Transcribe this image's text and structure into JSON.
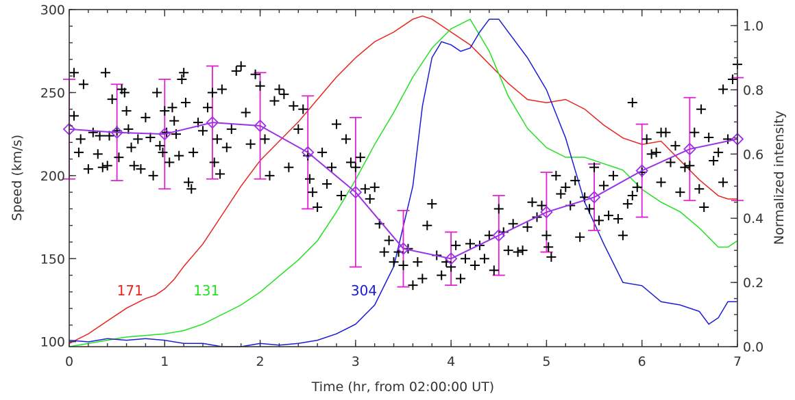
{
  "chart_data": {
    "type": "scatter",
    "xlabel": "Time (hr, from 02:00:00 UT)",
    "ylabel": "Speed (km/s)",
    "y2label": "Normalized intensity",
    "xlim": [
      0,
      7
    ],
    "ylim": [
      97,
      300
    ],
    "y2lim": [
      0,
      1.05
    ],
    "x_ticks": [
      0,
      1,
      2,
      3,
      4,
      5,
      6,
      7
    ],
    "y_ticks": [
      100,
      150,
      200,
      250,
      300
    ],
    "y2_ticks": [
      "0.0",
      "0.2",
      "0.4",
      "0.6",
      "0.8",
      "1.0"
    ],
    "y2_tick_values": [
      0,
      0.2,
      0.4,
      0.6,
      0.8,
      1.0
    ],
    "grid": false,
    "colors": {
      "points": "#000000",
      "mean": "#9a30e8",
      "errorbars": "#e020d0",
      "ch171": "#e8241c",
      "ch131": "#22e022",
      "ch304": "#1a1ad8",
      "axes": "#333333"
    },
    "speed_points": [
      [
        0.05,
        262
      ],
      [
        0.05,
        236
      ],
      [
        0.1,
        214
      ],
      [
        0.12,
        222
      ],
      [
        0.15,
        255
      ],
      [
        0.2,
        204
      ],
      [
        0.25,
        226
      ],
      [
        0.3,
        213
      ],
      [
        0.32,
        224
      ],
      [
        0.35,
        205
      ],
      [
        0.38,
        262
      ],
      [
        0.4,
        206
      ],
      [
        0.42,
        224
      ],
      [
        0.45,
        246
      ],
      [
        0.5,
        227
      ],
      [
        0.52,
        211
      ],
      [
        0.55,
        252
      ],
      [
        0.58,
        250
      ],
      [
        0.6,
        239
      ],
      [
        0.62,
        228
      ],
      [
        0.65,
        217
      ],
      [
        0.68,
        206
      ],
      [
        0.72,
        222
      ],
      [
        0.75,
        204
      ],
      [
        0.8,
        235
      ],
      [
        0.85,
        223
      ],
      [
        0.88,
        200
      ],
      [
        0.92,
        250
      ],
      [
        0.95,
        218
      ],
      [
        0.98,
        214
      ],
      [
        1.0,
        239
      ],
      [
        1.02,
        226
      ],
      [
        1.05,
        208
      ],
      [
        1.08,
        241
      ],
      [
        1.1,
        233
      ],
      [
        1.12,
        225
      ],
      [
        1.15,
        212
      ],
      [
        1.18,
        258
      ],
      [
        1.2,
        262
      ],
      [
        1.22,
        244
      ],
      [
        1.25,
        196
      ],
      [
        1.28,
        192
      ],
      [
        1.3,
        214
      ],
      [
        1.35,
        232
      ],
      [
        1.4,
        227
      ],
      [
        1.45,
        241
      ],
      [
        1.5,
        250
      ],
      [
        1.52,
        208
      ],
      [
        1.55,
        222
      ],
      [
        1.58,
        201
      ],
      [
        1.6,
        252
      ],
      [
        1.65,
        217
      ],
      [
        1.7,
        228
      ],
      [
        1.75,
        263
      ],
      [
        1.8,
        266
      ],
      [
        1.85,
        238
      ],
      [
        1.9,
        219
      ],
      [
        1.95,
        261
      ],
      [
        2.0,
        254
      ],
      [
        2.05,
        222
      ],
      [
        2.1,
        200
      ],
      [
        2.15,
        245
      ],
      [
        2.2,
        252
      ],
      [
        2.25,
        249
      ],
      [
        2.3,
        205
      ],
      [
        2.35,
        242
      ],
      [
        2.4,
        228
      ],
      [
        2.45,
        240
      ],
      [
        2.5,
        212
      ],
      [
        2.52,
        198
      ],
      [
        2.55,
        190
      ],
      [
        2.6,
        181
      ],
      [
        2.65,
        214
      ],
      [
        2.7,
        195
      ],
      [
        2.75,
        205
      ],
      [
        2.8,
        231
      ],
      [
        2.85,
        188
      ],
      [
        2.9,
        222
      ],
      [
        2.95,
        208
      ],
      [
        3.0,
        205
      ],
      [
        3.05,
        211
      ],
      [
        3.1,
        192
      ],
      [
        3.15,
        186
      ],
      [
        3.2,
        193
      ],
      [
        3.25,
        171
      ],
      [
        3.3,
        154
      ],
      [
        3.35,
        161
      ],
      [
        3.4,
        148
      ],
      [
        3.45,
        154
      ],
      [
        3.5,
        146
      ],
      [
        3.55,
        156
      ],
      [
        3.6,
        134
      ],
      [
        3.65,
        148
      ],
      [
        3.7,
        138
      ],
      [
        3.75,
        170
      ],
      [
        3.8,
        183
      ],
      [
        3.85,
        152
      ],
      [
        3.9,
        140
      ],
      [
        3.95,
        148
      ],
      [
        4.0,
        145
      ],
      [
        4.05,
        158
      ],
      [
        4.1,
        138
      ],
      [
        4.15,
        150
      ],
      [
        4.2,
        159
      ],
      [
        4.25,
        146
      ],
      [
        4.3,
        158
      ],
      [
        4.35,
        150
      ],
      [
        4.4,
        164
      ],
      [
        4.45,
        143
      ],
      [
        4.5,
        180
      ],
      [
        4.55,
        166
      ],
      [
        4.6,
        155
      ],
      [
        4.65,
        171
      ],
      [
        4.7,
        154
      ],
      [
        4.75,
        155
      ],
      [
        4.8,
        169
      ],
      [
        4.85,
        184
      ],
      [
        4.9,
        175
      ],
      [
        4.95,
        182
      ],
      [
        5.0,
        164
      ],
      [
        5.02,
        157
      ],
      [
        5.05,
        151
      ],
      [
        5.1,
        200
      ],
      [
        5.15,
        189
      ],
      [
        5.2,
        193
      ],
      [
        5.25,
        182
      ],
      [
        5.3,
        197
      ],
      [
        5.35,
        163
      ],
      [
        5.4,
        187
      ],
      [
        5.45,
        180
      ],
      [
        5.5,
        205
      ],
      [
        5.55,
        173
      ],
      [
        5.6,
        194
      ],
      [
        5.65,
        176
      ],
      [
        5.7,
        200
      ],
      [
        5.75,
        174
      ],
      [
        5.8,
        164
      ],
      [
        5.85,
        183
      ],
      [
        5.9,
        188
      ],
      [
        5.95,
        193
      ],
      [
        6.0,
        202
      ],
      [
        6.05,
        222
      ],
      [
        6.1,
        213
      ],
      [
        6.15,
        214
      ],
      [
        6.2,
        196
      ],
      [
        6.25,
        226
      ],
      [
        6.3,
        208
      ],
      [
        6.35,
        218
      ],
      [
        6.4,
        190
      ],
      [
        6.45,
        205
      ],
      [
        6.5,
        206
      ],
      [
        6.55,
        226
      ],
      [
        6.6,
        192
      ],
      [
        6.65,
        181
      ],
      [
        6.7,
        223
      ],
      [
        6.75,
        209
      ],
      [
        6.8,
        214
      ],
      [
        6.85,
        196
      ],
      [
        6.9,
        222
      ],
      [
        6.95,
        258
      ],
      [
        7.0,
        267
      ],
      [
        6.85,
        252
      ],
      [
        6.62,
        240
      ],
      [
        6.2,
        226
      ],
      [
        5.9,
        244
      ]
    ],
    "mean_speed": [
      {
        "x": 0.0,
        "y": 228,
        "err": 30
      },
      {
        "x": 0.5,
        "y": 226,
        "err": 29
      },
      {
        "x": 1.0,
        "y": 225,
        "err": 33
      },
      {
        "x": 1.5,
        "y": 232,
        "err": 34
      },
      {
        "x": 2.0,
        "y": 230,
        "err": 32
      },
      {
        "x": 2.5,
        "y": 214,
        "err": 34
      },
      {
        "x": 3.0,
        "y": 190,
        "err": 45
      },
      {
        "x": 3.5,
        "y": 156,
        "err": 23
      },
      {
        "x": 4.0,
        "y": 150,
        "err": 16
      },
      {
        "x": 4.5,
        "y": 164,
        "err": 24
      },
      {
        "x": 5.0,
        "y": 178,
        "err": 24
      },
      {
        "x": 5.5,
        "y": 187,
        "err": 20
      },
      {
        "x": 6.0,
        "y": 203,
        "err": 28
      },
      {
        "x": 6.5,
        "y": 216,
        "err": 31
      },
      {
        "x": 7.0,
        "y": 222,
        "err": 37
      }
    ],
    "intensity_curves": [
      {
        "name": "171",
        "points": [
          [
            0,
            0.01
          ],
          [
            0.2,
            0.04
          ],
          [
            0.4,
            0.08
          ],
          [
            0.6,
            0.12
          ],
          [
            0.8,
            0.15
          ],
          [
            0.9,
            0.16
          ],
          [
            1.0,
            0.18
          ],
          [
            1.1,
            0.21
          ],
          [
            1.2,
            0.25
          ],
          [
            1.4,
            0.32
          ],
          [
            1.6,
            0.41
          ],
          [
            1.8,
            0.5
          ],
          [
            2.0,
            0.58
          ],
          [
            2.2,
            0.64
          ],
          [
            2.4,
            0.7
          ],
          [
            2.6,
            0.77
          ],
          [
            2.8,
            0.84
          ],
          [
            3.0,
            0.9
          ],
          [
            3.2,
            0.95
          ],
          [
            3.4,
            0.98
          ],
          [
            3.6,
            1.02
          ],
          [
            3.7,
            1.03
          ],
          [
            3.8,
            1.02
          ],
          [
            4.0,
            0.98
          ],
          [
            4.2,
            0.94
          ],
          [
            4.4,
            0.88
          ],
          [
            4.6,
            0.82
          ],
          [
            4.8,
            0.77
          ],
          [
            5.0,
            0.76
          ],
          [
            5.2,
            0.77
          ],
          [
            5.4,
            0.74
          ],
          [
            5.6,
            0.69
          ],
          [
            5.8,
            0.65
          ],
          [
            6.0,
            0.63
          ],
          [
            6.2,
            0.64
          ],
          [
            6.4,
            0.58
          ],
          [
            6.6,
            0.52
          ],
          [
            6.8,
            0.47
          ],
          [
            6.9,
            0.46
          ],
          [
            7.0,
            0.46
          ]
        ]
      },
      {
        "name": "131",
        "points": [
          [
            0,
            0.0
          ],
          [
            0.2,
            0.01
          ],
          [
            0.4,
            0.02
          ],
          [
            0.6,
            0.03
          ],
          [
            0.8,
            0.035
          ],
          [
            1.0,
            0.04
          ],
          [
            1.2,
            0.05
          ],
          [
            1.4,
            0.07
          ],
          [
            1.6,
            0.1
          ],
          [
            1.8,
            0.13
          ],
          [
            2.0,
            0.17
          ],
          [
            2.2,
            0.22
          ],
          [
            2.4,
            0.27
          ],
          [
            2.6,
            0.33
          ],
          [
            2.8,
            0.42
          ],
          [
            3.0,
            0.52
          ],
          [
            3.2,
            0.63
          ],
          [
            3.4,
            0.73
          ],
          [
            3.6,
            0.84
          ],
          [
            3.8,
            0.93
          ],
          [
            4.0,
            0.99
          ],
          [
            4.2,
            1.02
          ],
          [
            4.4,
            0.92
          ],
          [
            4.6,
            0.78
          ],
          [
            4.8,
            0.68
          ],
          [
            5.0,
            0.62
          ],
          [
            5.2,
            0.59
          ],
          [
            5.4,
            0.59
          ],
          [
            5.6,
            0.57
          ],
          [
            5.8,
            0.55
          ],
          [
            6.0,
            0.49
          ],
          [
            6.2,
            0.45
          ],
          [
            6.4,
            0.42
          ],
          [
            6.6,
            0.37
          ],
          [
            6.8,
            0.31
          ],
          [
            6.9,
            0.31
          ],
          [
            7.0,
            0.33
          ]
        ]
      },
      {
        "name": "304",
        "points": [
          [
            0,
            0.02
          ],
          [
            0.2,
            0.015
          ],
          [
            0.4,
            0.025
          ],
          [
            0.6,
            0.02
          ],
          [
            0.8,
            0.025
          ],
          [
            1.0,
            0.02
          ],
          [
            1.2,
            0.01
          ],
          [
            1.4,
            0.01
          ],
          [
            1.6,
            0.0
          ],
          [
            1.8,
            -0.01
          ],
          [
            2.0,
            0.01
          ],
          [
            2.2,
            0.005
          ],
          [
            2.4,
            0.01
          ],
          [
            2.6,
            0.02
          ],
          [
            2.8,
            0.04
          ],
          [
            3.0,
            0.07
          ],
          [
            3.2,
            0.13
          ],
          [
            3.4,
            0.25
          ],
          [
            3.6,
            0.5
          ],
          [
            3.7,
            0.75
          ],
          [
            3.8,
            0.9
          ],
          [
            3.9,
            0.95
          ],
          [
            4.0,
            0.94
          ],
          [
            4.1,
            0.92
          ],
          [
            4.2,
            0.93
          ],
          [
            4.3,
            0.98
          ],
          [
            4.4,
            1.02
          ],
          [
            4.5,
            1.02
          ],
          [
            4.6,
            0.98
          ],
          [
            4.8,
            0.9
          ],
          [
            5.0,
            0.8
          ],
          [
            5.2,
            0.65
          ],
          [
            5.4,
            0.45
          ],
          [
            5.6,
            0.32
          ],
          [
            5.8,
            0.2
          ],
          [
            6.0,
            0.19
          ],
          [
            6.2,
            0.14
          ],
          [
            6.4,
            0.13
          ],
          [
            6.6,
            0.11
          ],
          [
            6.7,
            0.07
          ],
          [
            6.8,
            0.09
          ],
          [
            6.9,
            0.14
          ],
          [
            7.0,
            0.14
          ]
        ]
      }
    ],
    "curve_labels": [
      {
        "text": "171",
        "x": 0.5,
        "y2": 0.16
      },
      {
        "text": "131",
        "x": 1.3,
        "y2": 0.16
      },
      {
        "text": "304",
        "x": 2.95,
        "y2": 0.16
      }
    ]
  }
}
